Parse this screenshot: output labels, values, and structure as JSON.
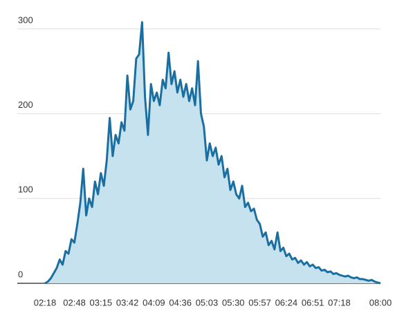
{
  "chart_data": {
    "type": "area",
    "x": [
      "02:18",
      "02:21",
      "02:24",
      "02:27",
      "02:30",
      "02:33",
      "02:36",
      "02:39",
      "02:42",
      "02:45",
      "02:48",
      "02:51",
      "02:54",
      "02:57",
      "03:00",
      "03:03",
      "03:06",
      "03:09",
      "03:12",
      "03:15",
      "03:18",
      "03:21",
      "03:24",
      "03:27",
      "03:30",
      "03:33",
      "03:36",
      "03:39",
      "03:42",
      "03:45",
      "03:48",
      "03:51",
      "03:54",
      "03:57",
      "04:00",
      "04:03",
      "04:06",
      "04:09",
      "04:12",
      "04:15",
      "04:18",
      "04:21",
      "04:24",
      "04:27",
      "04:30",
      "04:33",
      "04:36",
      "04:39",
      "04:42",
      "04:45",
      "04:48",
      "04:51",
      "04:54",
      "04:57",
      "05:00",
      "05:03",
      "05:06",
      "05:09",
      "05:12",
      "05:15",
      "05:18",
      "05:21",
      "05:24",
      "05:27",
      "05:30",
      "05:33",
      "05:36",
      "05:39",
      "05:42",
      "05:45",
      "05:48",
      "05:51",
      "05:54",
      "05:57",
      "06:00",
      "06:03",
      "06:06",
      "06:09",
      "06:12",
      "06:15",
      "06:18",
      "06:21",
      "06:24",
      "06:27",
      "06:30",
      "06:33",
      "06:36",
      "06:39",
      "06:42",
      "06:45",
      "06:48",
      "06:51",
      "06:54",
      "06:57",
      "07:00",
      "07:03",
      "07:06",
      "07:09",
      "07:12",
      "07:15",
      "07:18",
      "07:21",
      "07:24",
      "07:27",
      "07:30",
      "07:33",
      "07:36",
      "07:39",
      "07:42",
      "07:45",
      "07:48",
      "07:51",
      "07:54",
      "07:57",
      "08:00"
    ],
    "values": [
      0,
      2,
      6,
      12,
      18,
      28,
      22,
      38,
      35,
      52,
      48,
      70,
      95,
      135,
      80,
      100,
      90,
      120,
      105,
      130,
      115,
      145,
      195,
      150,
      175,
      165,
      190,
      180,
      245,
      205,
      215,
      265,
      270,
      308,
      220,
      175,
      235,
      215,
      225,
      210,
      240,
      230,
      272,
      235,
      250,
      225,
      240,
      220,
      235,
      215,
      230,
      210,
      262,
      200,
      185,
      145,
      165,
      150,
      160,
      140,
      150,
      125,
      135,
      110,
      120,
      105,
      100,
      115,
      90,
      95,
      85,
      88,
      75,
      70,
      55,
      60,
      45,
      50,
      40,
      60,
      38,
      42,
      32,
      35,
      28,
      30,
      24,
      27,
      22,
      25,
      20,
      22,
      18,
      19,
      15,
      16,
      13,
      14,
      11,
      12,
      10,
      9,
      8,
      9,
      7,
      6,
      7,
      5,
      5,
      4,
      3,
      4,
      2,
      1,
      0
    ],
    "color": "#1a6fa0",
    "fill": "#c6e2ee",
    "xlim": [
      "02:18",
      "08:00"
    ],
    "xticks": [
      "02:18",
      "02:48",
      "03:15",
      "03:42",
      "04:09",
      "04:36",
      "05:03",
      "05:30",
      "05:57",
      "06:24",
      "06:51",
      "07:18",
      "08:00"
    ],
    "ylim": [
      0,
      310
    ],
    "yticks": [
      0,
      100,
      200,
      300
    ],
    "grid": true
  }
}
